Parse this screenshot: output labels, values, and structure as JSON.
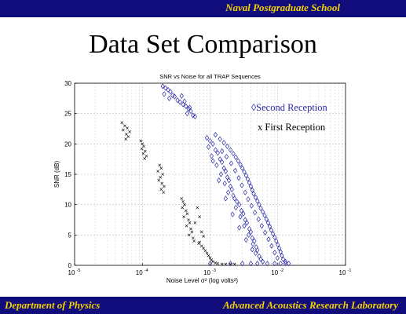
{
  "header": {
    "school": "Naval Postgraduate School"
  },
  "slide": {
    "title": "Data Set Comparison"
  },
  "footer": {
    "department": "Department of Physics",
    "laboratory": "Advanced Acoustics Research Laboratory"
  },
  "colors": {
    "bar": "#100c7c",
    "bar_text": "#f4d200",
    "second": "#2a2aa6",
    "first": "#000000"
  },
  "chart_data": {
    "type": "scatter",
    "title": "SNR vs Noise for all TRAP Sequences",
    "xlabel": "Noise Level σ² (log volts²)",
    "ylabel": "SNR (dB)",
    "x_scale": "log",
    "xlim": [
      1e-05,
      0.1
    ],
    "ylim": [
      0,
      30
    ],
    "x_ticks": [
      {
        "value": 1e-05,
        "base": "10",
        "exp": "-5"
      },
      {
        "value": 0.0001,
        "base": "10",
        "exp": "-4"
      },
      {
        "value": 0.001,
        "base": "10",
        "exp": "-3"
      },
      {
        "value": 0.01,
        "base": "10",
        "exp": "-2"
      },
      {
        "value": 0.1,
        "base": "10",
        "exp": "-1"
      }
    ],
    "y_ticks": [
      0,
      5,
      10,
      15,
      20,
      25,
      30
    ],
    "grid": true,
    "legend_position": "top-right",
    "series": [
      {
        "name": "Second Reception",
        "marker": "◊",
        "color": "#2a2aa6",
        "points": [
          [
            0.0002,
            29.5
          ],
          [
            0.00022,
            29.2
          ],
          [
            0.00024,
            28.9
          ],
          [
            0.00026,
            28.6
          ],
          [
            0.00021,
            28.2
          ],
          [
            0.00028,
            28.0
          ],
          [
            0.0003,
            27.8
          ],
          [
            0.00025,
            27.5
          ],
          [
            0.00033,
            27.2
          ],
          [
            0.00036,
            26.9
          ],
          [
            0.0004,
            26.5
          ],
          [
            0.00044,
            26.2
          ],
          [
            0.00048,
            25.8
          ],
          [
            0.00052,
            25.4
          ],
          [
            0.00046,
            25.0
          ],
          [
            0.00056,
            24.7
          ],
          [
            0.0006,
            24.5
          ],
          [
            0.00038,
            27.9
          ],
          [
            0.00042,
            27.0
          ],
          [
            0.0005,
            26.0
          ],
          [
            0.0009,
            21.0
          ],
          [
            0.001,
            20.5
          ],
          [
            0.0011,
            20.0
          ],
          [
            0.00095,
            19.5
          ],
          [
            0.0012,
            19.0
          ],
          [
            0.0013,
            18.5
          ],
          [
            0.00105,
            18.0
          ],
          [
            0.0014,
            17.5
          ],
          [
            0.0015,
            17.0
          ],
          [
            0.00125,
            16.5
          ],
          [
            0.0016,
            16.0
          ],
          [
            0.0017,
            15.5
          ],
          [
            0.00145,
            15.0
          ],
          [
            0.0018,
            14.5
          ],
          [
            0.0019,
            14.0
          ],
          [
            0.00165,
            13.5
          ],
          [
            0.002,
            13.0
          ],
          [
            0.0021,
            12.5
          ],
          [
            0.00185,
            12.0
          ],
          [
            0.0022,
            11.5
          ],
          [
            0.0023,
            11.0
          ],
          [
            0.0025,
            10.5
          ],
          [
            0.0027,
            10.0
          ],
          [
            0.0024,
            9.5
          ],
          [
            0.0029,
            9.0
          ],
          [
            0.0031,
            8.5
          ],
          [
            0.0028,
            8.0
          ],
          [
            0.0033,
            7.5
          ],
          [
            0.0035,
            7.0
          ],
          [
            0.0032,
            6.5
          ],
          [
            0.0038,
            6.0
          ],
          [
            0.004,
            5.5
          ],
          [
            0.0037,
            5.0
          ],
          [
            0.0042,
            4.5
          ],
          [
            0.0045,
            4.0
          ],
          [
            0.0043,
            3.5
          ],
          [
            0.0048,
            3.0
          ],
          [
            0.005,
            2.5
          ],
          [
            0.0047,
            2.0
          ],
          [
            0.0053,
            1.5
          ],
          [
            0.0056,
            1.0
          ],
          [
            0.006,
            0.6
          ],
          [
            0.0012,
            21.5
          ],
          [
            0.0014,
            20.8
          ],
          [
            0.0016,
            20.2
          ],
          [
            0.0018,
            19.6
          ],
          [
            0.002,
            19.0
          ],
          [
            0.0022,
            18.4
          ],
          [
            0.0024,
            17.8
          ],
          [
            0.0026,
            17.2
          ],
          [
            0.0028,
            16.6
          ],
          [
            0.003,
            16.0
          ],
          [
            0.0032,
            15.4
          ],
          [
            0.0034,
            14.8
          ],
          [
            0.0036,
            14.2
          ],
          [
            0.0038,
            13.6
          ],
          [
            0.004,
            13.0
          ],
          [
            0.0042,
            12.4
          ],
          [
            0.0044,
            11.8
          ],
          [
            0.0047,
            11.2
          ],
          [
            0.005,
            10.6
          ],
          [
            0.0053,
            10.0
          ],
          [
            0.0056,
            9.4
          ],
          [
            0.006,
            8.8
          ],
          [
            0.0064,
            8.2
          ],
          [
            0.0068,
            7.6
          ],
          [
            0.0072,
            7.0
          ],
          [
            0.0076,
            6.4
          ],
          [
            0.008,
            5.8
          ],
          [
            0.0085,
            5.2
          ],
          [
            0.009,
            4.6
          ],
          [
            0.0095,
            4.0
          ],
          [
            0.01,
            3.4
          ],
          [
            0.0105,
            2.8
          ],
          [
            0.011,
            2.2
          ],
          [
            0.0115,
            1.6
          ],
          [
            0.012,
            1.0
          ],
          [
            0.013,
            0.6
          ],
          [
            0.0015,
            18.8
          ],
          [
            0.00175,
            17.9
          ],
          [
            0.00205,
            16.8
          ],
          [
            0.00235,
            15.6
          ],
          [
            0.00265,
            14.4
          ],
          [
            0.00295,
            13.2
          ],
          [
            0.0033,
            12.0
          ],
          [
            0.00365,
            10.9
          ],
          [
            0.0041,
            9.8
          ],
          [
            0.0046,
            8.7
          ],
          [
            0.0052,
            7.6
          ],
          [
            0.0058,
            6.5
          ],
          [
            0.0065,
            5.4
          ],
          [
            0.0073,
            4.3
          ],
          [
            0.0081,
            3.2
          ],
          [
            0.009,
            2.1
          ],
          [
            0.0099,
            1.2
          ],
          [
            0.0011,
            17.2
          ],
          [
            0.00135,
            14.0
          ],
          [
            0.0017,
            11.0
          ],
          [
            0.00215,
            8.4
          ],
          [
            0.0027,
            6.2
          ],
          [
            0.0034,
            4.2
          ],
          [
            0.0042,
            2.6
          ],
          [
            0.001,
            0.3
          ],
          [
            0.002,
            0.3
          ],
          [
            0.003,
            0.3
          ],
          [
            0.004,
            0.3
          ],
          [
            0.005,
            0.3
          ],
          [
            0.007,
            0.3
          ],
          [
            0.009,
            0.3
          ],
          [
            0.011,
            0.3
          ],
          [
            0.013,
            0.3
          ],
          [
            0.0145,
            0.3
          ]
        ]
      },
      {
        "name": "First Reception",
        "marker": "x",
        "color": "#000000",
        "points": [
          [
            5e-05,
            23.5
          ],
          [
            5.5e-05,
            23.0
          ],
          [
            6e-05,
            22.6
          ],
          [
            5.2e-05,
            22.3
          ],
          [
            6.5e-05,
            22.0
          ],
          [
            5.8e-05,
            21.6
          ],
          [
            6.2e-05,
            21.2
          ],
          [
            5.7e-05,
            20.8
          ],
          [
            9.5e-05,
            20.5
          ],
          [
            0.0001,
            20.0
          ],
          [
            0.000105,
            19.6
          ],
          [
            9.8e-05,
            19.2
          ],
          [
            0.00011,
            18.8
          ],
          [
            0.000103,
            18.4
          ],
          [
            0.000115,
            18.0
          ],
          [
            0.000108,
            17.6
          ],
          [
            0.00018,
            16.5
          ],
          [
            0.00019,
            16.0
          ],
          [
            0.00017,
            15.5
          ],
          [
            0.0002,
            15.0
          ],
          [
            0.000185,
            14.5
          ],
          [
            0.000175,
            14.0
          ],
          [
            0.000195,
            13.5
          ],
          [
            0.00021,
            13.0
          ],
          [
            0.00019,
            12.5
          ],
          [
            0.000205,
            12.0
          ],
          [
            0.00038,
            11.0
          ],
          [
            0.0004,
            10.5
          ],
          [
            0.00042,
            10.0
          ],
          [
            0.00039,
            9.5
          ],
          [
            0.00044,
            9.0
          ],
          [
            0.00046,
            8.5
          ],
          [
            0.00041,
            8.0
          ],
          [
            0.00048,
            7.5
          ],
          [
            0.0005,
            7.0
          ],
          [
            0.00045,
            6.5
          ],
          [
            0.00052,
            6.0
          ],
          [
            0.00054,
            5.5
          ],
          [
            0.00049,
            5.0
          ],
          [
            0.00056,
            4.5
          ],
          [
            0.00058,
            4.0
          ],
          [
            0.0007,
            3.8
          ],
          [
            0.00075,
            3.2
          ],
          [
            0.0008,
            2.8
          ],
          [
            0.00085,
            2.4
          ],
          [
            0.0009,
            2.0
          ],
          [
            0.00095,
            1.6
          ],
          [
            0.001,
            1.2
          ],
          [
            0.00105,
            0.9
          ],
          [
            0.0011,
            0.6
          ],
          [
            0.0012,
            0.4
          ],
          [
            0.0013,
            0.3
          ],
          [
            0.0015,
            0.2
          ],
          [
            0.0017,
            0.2
          ],
          [
            0.002,
            0.2
          ],
          [
            0.0023,
            0.2
          ],
          [
            0.00065,
            9.5
          ],
          [
            0.0007,
            8.0
          ],
          [
            0.0006,
            7.0
          ],
          [
            0.00075,
            5.5
          ],
          [
            0.0008,
            4.8
          ],
          [
            0.00068,
            3.6
          ]
        ]
      }
    ]
  }
}
